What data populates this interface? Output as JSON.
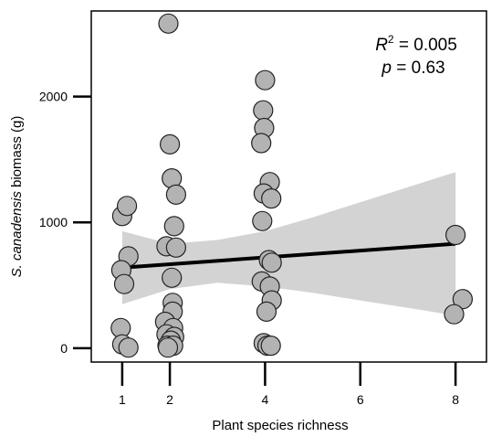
{
  "chart_data": {
    "type": "scatter",
    "xlabel": "Plant species richness",
    "ylabel_parts": [
      "S. canadensis",
      " biomass (g)"
    ],
    "x_ticks": [
      1,
      2,
      4,
      6,
      8
    ],
    "y_ticks": [
      0,
      1000,
      2000
    ],
    "xlim": [
      0.35,
      8.65
    ],
    "ylim": [
      -110,
      2680
    ],
    "grid": false,
    "legend": "none",
    "annotation": {
      "r2_label": "R",
      "r2_exp": "2",
      "r2_value": " = 0.005",
      "p_label": "p",
      "p_value": " = 0.63"
    },
    "regression": {
      "x": [
        1,
        8
      ],
      "y": [
        640,
        830
      ]
    },
    "confidence_band": {
      "x": [
        1,
        2,
        3,
        4,
        5,
        6,
        7,
        8
      ],
      "lower": [
        350,
        470,
        520,
        490,
        440,
        380,
        320,
        260
      ],
      "upper": [
        930,
        830,
        860,
        930,
        1040,
        1160,
        1280,
        1400
      ]
    },
    "points": [
      {
        "x": 1.0,
        "y": 1050
      },
      {
        "x": 1.1,
        "y": 1130
      },
      {
        "x": 1.13,
        "y": 730
      },
      {
        "x": 0.98,
        "y": 620
      },
      {
        "x": 1.04,
        "y": 510
      },
      {
        "x": 0.97,
        "y": 160
      },
      {
        "x": 1.0,
        "y": 30
      },
      {
        "x": 1.13,
        "y": 5
      },
      {
        "x": 1.97,
        "y": 2580
      },
      {
        "x": 2.0,
        "y": 1620
      },
      {
        "x": 2.04,
        "y": 1350
      },
      {
        "x": 2.13,
        "y": 1220
      },
      {
        "x": 2.09,
        "y": 970
      },
      {
        "x": 1.93,
        "y": 810
      },
      {
        "x": 2.13,
        "y": 800
      },
      {
        "x": 2.04,
        "y": 560
      },
      {
        "x": 2.06,
        "y": 360
      },
      {
        "x": 2.06,
        "y": 290
      },
      {
        "x": 1.9,
        "y": 210
      },
      {
        "x": 2.07,
        "y": 160
      },
      {
        "x": 1.93,
        "y": 110
      },
      {
        "x": 2.09,
        "y": 90
      },
      {
        "x": 2.02,
        "y": 60
      },
      {
        "x": 1.95,
        "y": 20
      },
      {
        "x": 2.07,
        "y": 20
      },
      {
        "x": 1.96,
        "y": 5
      },
      {
        "x": 4.0,
        "y": 2130
      },
      {
        "x": 3.96,
        "y": 1890
      },
      {
        "x": 3.98,
        "y": 1750
      },
      {
        "x": 3.92,
        "y": 1630
      },
      {
        "x": 4.1,
        "y": 1320
      },
      {
        "x": 3.97,
        "y": 1230
      },
      {
        "x": 4.13,
        "y": 1190
      },
      {
        "x": 3.94,
        "y": 1010
      },
      {
        "x": 4.08,
        "y": 700
      },
      {
        "x": 4.14,
        "y": 680
      },
      {
        "x": 3.93,
        "y": 530
      },
      {
        "x": 4.1,
        "y": 490
      },
      {
        "x": 4.14,
        "y": 380
      },
      {
        "x": 4.03,
        "y": 290
      },
      {
        "x": 3.97,
        "y": 40
      },
      {
        "x": 4.05,
        "y": 20
      },
      {
        "x": 4.12,
        "y": 20
      },
      {
        "x": 8.0,
        "y": 900
      },
      {
        "x": 8.15,
        "y": 390
      },
      {
        "x": 7.97,
        "y": 270
      }
    ]
  }
}
